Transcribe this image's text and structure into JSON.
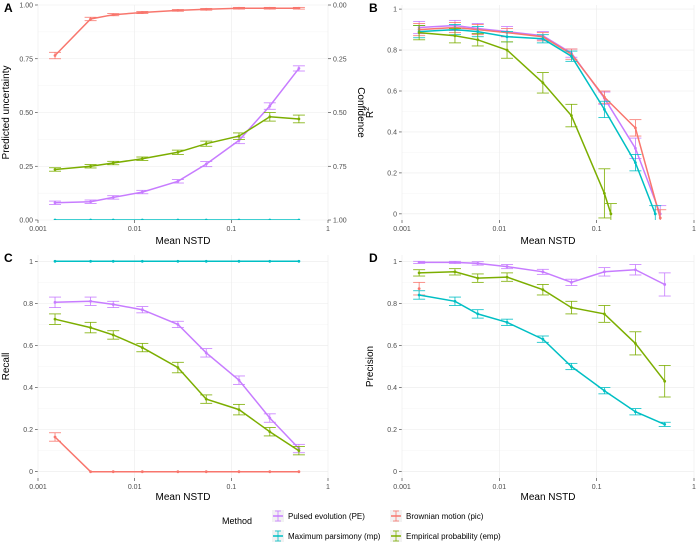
{
  "chart_data": [
    {
      "panel": "A",
      "type": "line",
      "xlabel": "Mean NSTD",
      "ylabel": "Predicted uncertainty",
      "y2label": "Confidence",
      "xscale": "log",
      "xlim": [
        0.001,
        1
      ],
      "ylim": [
        0,
        1
      ],
      "xticks": [
        "0.001",
        "0.01",
        "0.1",
        "1"
      ],
      "yticks": [
        "0.00",
        "0.25",
        "0.50",
        "0.75",
        "1.00"
      ],
      "y2ticks": [
        "1.00",
        "0.75",
        "0.50",
        "0.25",
        "0.00"
      ],
      "series": [
        {
          "name": "Pulsed evolution (PE)",
          "color": "#c77cff",
          "x": [
            0.0015,
            0.0035,
            0.006,
            0.012,
            0.028,
            0.055,
            0.12,
            0.25,
            0.5
          ],
          "y": [
            0.08,
            0.085,
            0.105,
            0.13,
            0.18,
            0.26,
            0.37,
            0.53,
            0.705
          ],
          "err": [
            0.008,
            0.008,
            0.008,
            0.008,
            0.008,
            0.012,
            0.015,
            0.015,
            0.012
          ]
        },
        {
          "name": "Brownian motion (pic)",
          "color": "#f8766d",
          "x": [
            0.0015,
            0.0035,
            0.006,
            0.012,
            0.028,
            0.055,
            0.12,
            0.25,
            0.5
          ],
          "y": [
            0.765,
            0.935,
            0.955,
            0.965,
            0.975,
            0.98,
            0.985,
            0.985,
            0.985
          ],
          "err": [
            0.015,
            0.008,
            0.005,
            0.005,
            0.004,
            0.004,
            0.004,
            0.004,
            0.004
          ]
        },
        {
          "name": "Maximum parsimony (mp)",
          "color": "#00bfc4",
          "x": [
            0.0015,
            0.0035,
            0.006,
            0.012,
            0.028,
            0.055,
            0.12,
            0.25,
            0.5
          ],
          "y": [
            0,
            0,
            0,
            0,
            0,
            0,
            0,
            0,
            0
          ],
          "err": [
            0,
            0,
            0,
            0,
            0,
            0,
            0,
            0,
            0
          ]
        },
        {
          "name": "Empirical probability (emp)",
          "color": "#7cae00",
          "x": [
            0.0015,
            0.0035,
            0.006,
            0.012,
            0.028,
            0.055,
            0.12,
            0.25,
            0.5
          ],
          "y": [
            0.235,
            0.25,
            0.265,
            0.285,
            0.315,
            0.355,
            0.39,
            0.48,
            0.47
          ],
          "err": [
            0.008,
            0.008,
            0.008,
            0.008,
            0.01,
            0.012,
            0.015,
            0.02,
            0.018
          ]
        }
      ]
    },
    {
      "panel": "B",
      "type": "line",
      "xlabel": "Mean NSTD",
      "ylabel": "R",
      "ylabel_sup": "2",
      "xscale": "log",
      "xlim": [
        0.001,
        1
      ],
      "ylim": [
        -0.03,
        1.02
      ],
      "xticks": [
        "0.001",
        "0.01",
        "0.1",
        "1"
      ],
      "yticks": [
        "0",
        "0.2",
        "0.4",
        "0.6",
        "0.8",
        "1"
      ],
      "series": [
        {
          "name": "Pulsed evolution (PE)",
          "color": "#c77cff",
          "x": [
            0.0015,
            0.0035,
            0.006,
            0.012,
            0.028,
            0.055,
            0.12,
            0.25,
            0.45
          ],
          "y": [
            0.91,
            0.92,
            0.905,
            0.89,
            0.87,
            0.785,
            0.565,
            0.32,
            0.0
          ],
          "err": [
            0.03,
            0.025,
            0.025,
            0.025,
            0.02,
            0.02,
            0.03,
            0.05,
            0.04
          ]
        },
        {
          "name": "Brownian motion (pic)",
          "color": "#f8766d",
          "x": [
            0.0015,
            0.0035,
            0.006,
            0.012,
            0.028,
            0.055,
            0.12,
            0.25,
            0.45
          ],
          "y": [
            0.9,
            0.91,
            0.9,
            0.885,
            0.865,
            0.78,
            0.57,
            0.42,
            -0.02
          ],
          "err": [
            0.03,
            0.025,
            0.025,
            0.02,
            0.02,
            0.025,
            0.03,
            0.04,
            0.04
          ]
        },
        {
          "name": "Maximum parsimony (mp)",
          "color": "#00bfc4",
          "x": [
            0.0015,
            0.0035,
            0.006,
            0.012,
            0.028,
            0.055,
            0.12,
            0.25,
            0.4
          ],
          "y": [
            0.89,
            0.9,
            0.89,
            0.865,
            0.855,
            0.77,
            0.51,
            0.25,
            0.0
          ],
          "err": [
            0.03,
            0.025,
            0.025,
            0.025,
            0.02,
            0.025,
            0.04,
            0.04,
            0.04
          ]
        },
        {
          "name": "Empirical probability (emp)",
          "color": "#7cae00",
          "x": [
            0.0015,
            0.0035,
            0.006,
            0.012,
            0.028,
            0.055,
            0.12,
            0.14
          ],
          "y": [
            0.885,
            0.87,
            0.85,
            0.8,
            0.64,
            0.48,
            0.1,
            0.0
          ],
          "err": [
            0.035,
            0.035,
            0.03,
            0.04,
            0.05,
            0.055,
            0.12,
            0.05
          ]
        }
      ]
    },
    {
      "panel": "C",
      "type": "line",
      "xlabel": "Mean NSTD",
      "ylabel": "Recall",
      "xscale": "log",
      "xlim": [
        0.001,
        1
      ],
      "ylim": [
        -0.03,
        1.03
      ],
      "xticks": [
        "0.001",
        "0.01",
        "0.1",
        "1"
      ],
      "yticks": [
        "0",
        "0.2",
        "0.4",
        "0.6",
        "0.8",
        "1"
      ],
      "series": [
        {
          "name": "Pulsed evolution (PE)",
          "color": "#c77cff",
          "x": [
            0.0015,
            0.0035,
            0.006,
            0.012,
            0.028,
            0.055,
            0.12,
            0.25,
            0.5
          ],
          "y": [
            0.805,
            0.81,
            0.795,
            0.77,
            0.7,
            0.565,
            0.435,
            0.255,
            0.11
          ],
          "err": [
            0.025,
            0.02,
            0.015,
            0.015,
            0.015,
            0.02,
            0.02,
            0.02,
            0.02
          ]
        },
        {
          "name": "Brownian motion (pic)",
          "color": "#f8766d",
          "x": [
            0.0015,
            0.0035,
            0.006,
            0.012,
            0.028,
            0.055,
            0.12,
            0.25,
            0.5
          ],
          "y": [
            0.165,
            0.0,
            0.0,
            0.0,
            0.0,
            0.0,
            0.0,
            0.0,
            0.0
          ],
          "err": [
            0.02,
            0,
            0,
            0,
            0,
            0,
            0,
            0,
            0
          ]
        },
        {
          "name": "Maximum parsimony (mp)",
          "color": "#00bfc4",
          "x": [
            0.0015,
            0.0035,
            0.006,
            0.012,
            0.028,
            0.055,
            0.12,
            0.25,
            0.5
          ],
          "y": [
            1,
            1,
            1,
            1,
            1,
            1,
            1,
            1,
            1
          ],
          "err": [
            0,
            0,
            0,
            0,
            0,
            0,
            0,
            0,
            0
          ]
        },
        {
          "name": "Empirical probability (emp)",
          "color": "#7cae00",
          "x": [
            0.0015,
            0.0035,
            0.006,
            0.012,
            0.028,
            0.055,
            0.12,
            0.25,
            0.5
          ],
          "y": [
            0.725,
            0.685,
            0.65,
            0.59,
            0.495,
            0.345,
            0.295,
            0.19,
            0.1
          ],
          "err": [
            0.025,
            0.025,
            0.02,
            0.02,
            0.025,
            0.02,
            0.025,
            0.02,
            0.02
          ]
        }
      ]
    },
    {
      "panel": "D",
      "type": "line",
      "xlabel": "Mean NSTD",
      "ylabel": "Precision",
      "xscale": "log",
      "xlim": [
        0.001,
        1
      ],
      "ylim": [
        -0.03,
        1.03
      ],
      "xticks": [
        "0.001",
        "0.01",
        "0.1",
        "1"
      ],
      "yticks": [
        "0",
        "0.2",
        "0.4",
        "0.6",
        "0.8",
        "1"
      ],
      "series": [
        {
          "name": "Pulsed evolution (PE)",
          "color": "#c77cff",
          "x": [
            0.0015,
            0.0035,
            0.006,
            0.012,
            0.028,
            0.055,
            0.12,
            0.25,
            0.5
          ],
          "y": [
            0.995,
            0.995,
            0.99,
            0.975,
            0.95,
            0.9,
            0.95,
            0.96,
            0.89
          ],
          "err": [
            0.005,
            0.005,
            0.008,
            0.01,
            0.012,
            0.015,
            0.02,
            0.025,
            0.055
          ]
        },
        {
          "name": "Brownian motion (pic)",
          "color": "#f8766d",
          "x": [
            0.0015
          ],
          "y": [
            0.87
          ],
          "err": [
            0.03
          ]
        },
        {
          "name": "Maximum parsimony (mp)",
          "color": "#00bfc4",
          "x": [
            0.0015,
            0.0035,
            0.006,
            0.012,
            0.028,
            0.055,
            0.12,
            0.25,
            0.5
          ],
          "y": [
            0.84,
            0.81,
            0.75,
            0.71,
            0.63,
            0.5,
            0.385,
            0.285,
            0.225
          ],
          "err": [
            0.02,
            0.02,
            0.02,
            0.015,
            0.015,
            0.015,
            0.015,
            0.015,
            0.01
          ]
        },
        {
          "name": "Empirical probability (emp)",
          "color": "#7cae00",
          "x": [
            0.0015,
            0.0035,
            0.006,
            0.012,
            0.028,
            0.055,
            0.12,
            0.25,
            0.5
          ],
          "y": [
            0.945,
            0.95,
            0.92,
            0.925,
            0.865,
            0.78,
            0.75,
            0.61,
            0.43
          ],
          "err": [
            0.015,
            0.015,
            0.02,
            0.02,
            0.025,
            0.03,
            0.04,
            0.055,
            0.075
          ]
        }
      ]
    }
  ],
  "legend": {
    "title": "Method",
    "items": [
      {
        "label": "Pulsed evolution (PE)",
        "color": "#c77cff"
      },
      {
        "label": "Brownian motion (pic)",
        "color": "#f8766d"
      },
      {
        "label": "Maximum parsimony (mp)",
        "color": "#00bfc4"
      },
      {
        "label": "Empirical probability (emp)",
        "color": "#7cae00"
      }
    ]
  }
}
